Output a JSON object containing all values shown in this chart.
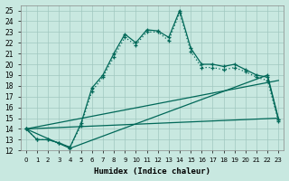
{
  "xlabel": "Humidex (Indice chaleur)",
  "bg_color": "#c8e8e0",
  "grid_color": "#a0c8c0",
  "line_color": "#006858",
  "xlim": [
    -0.5,
    23.5
  ],
  "ylim": [
    12,
    25.5
  ],
  "yticks": [
    12,
    13,
    14,
    15,
    16,
    17,
    18,
    19,
    20,
    21,
    22,
    23,
    24,
    25
  ],
  "xticks": [
    0,
    1,
    2,
    3,
    4,
    5,
    6,
    7,
    8,
    9,
    10,
    11,
    12,
    13,
    14,
    15,
    16,
    17,
    18,
    19,
    20,
    21,
    22,
    23
  ],
  "lines": [
    {
      "x": [
        0,
        1,
        2,
        3,
        4,
        5,
        6,
        7,
        8,
        9,
        10,
        11,
        12,
        13,
        14,
        15,
        16,
        17,
        18,
        19,
        20,
        21,
        22,
        23
      ],
      "y": [
        14,
        13,
        13,
        12.7,
        12.3,
        14.5,
        17.8,
        19.0,
        21.0,
        22.8,
        22.0,
        23.2,
        23.1,
        22.5,
        25.0,
        21.5,
        20.0,
        20.0,
        19.8,
        20.0,
        19.5,
        19.0,
        18.8,
        14.9
      ],
      "style": "-",
      "marker": true
    },
    {
      "x": [
        0,
        1,
        2,
        3,
        4,
        5,
        6,
        7,
        8,
        9,
        10,
        11,
        12,
        13,
        14,
        15,
        16,
        17,
        18,
        19,
        20,
        21,
        22,
        23
      ],
      "y": [
        14,
        13,
        13,
        12.7,
        12.3,
        14.3,
        17.5,
        18.8,
        20.7,
        22.5,
        21.8,
        23.0,
        23.0,
        22.2,
        24.8,
        21.2,
        19.7,
        19.7,
        19.5,
        19.7,
        19.3,
        18.8,
        18.5,
        14.7
      ],
      "style": ":",
      "marker": true
    },
    {
      "x": [
        0,
        23
      ],
      "y": [
        14,
        15.0
      ],
      "style": "-",
      "marker": false
    },
    {
      "x": [
        0,
        23
      ],
      "y": [
        14,
        18.5
      ],
      "style": "-",
      "marker": false
    },
    {
      "x": [
        0,
        4,
        22,
        23
      ],
      "y": [
        14,
        12.2,
        19.0,
        14.9
      ],
      "style": "-",
      "marker": true
    }
  ]
}
